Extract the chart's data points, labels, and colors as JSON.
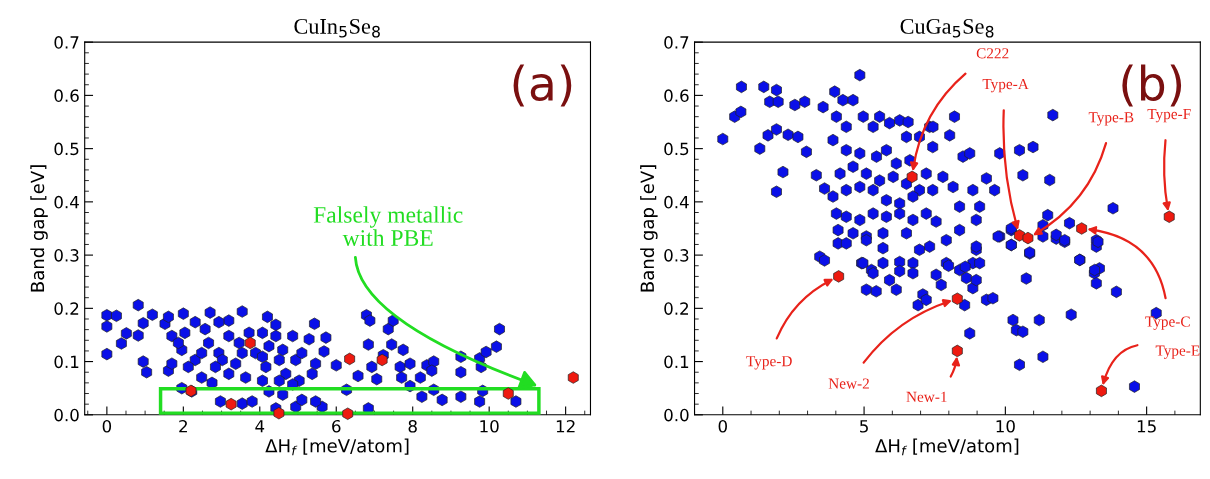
{
  "chart_data": [
    {
      "type": "scatter",
      "title": "CuIn$_{5}$Se$_{8}$",
      "xlabel": "ΔH$_{f}$ [meV/atom]",
      "ylabel": "Band gap [eV]",
      "xlim": [
        -0.58,
        12.65
      ],
      "ylim": [
        0,
        0.7
      ],
      "xticks": [
        0,
        2,
        4,
        6,
        8,
        10,
        12
      ],
      "yticks": [
        {
          "value": 0,
          "label": "0.0"
        },
        0.1,
        0.2,
        0.3,
        0.4,
        0.5,
        0.6,
        0.7
      ],
      "grid": false,
      "annotations": [
        "(a)",
        "Falsely metallic\nwith PBE"
      ],
      "series": [
        {
          "color": "#0a10e8",
          "x": [
            0,
            0.25,
            0,
            0,
            0.38,
            0.51,
            0.82,
            0.82,
            0.95,
            1.19,
            0.95,
            1.04,
            1.52,
            1.61,
            1.61,
            2.0,
            2.7,
            3.19,
            3.54,
            4.2,
            4.42,
            1.7,
            1.96,
            2.31,
            2.66,
            2.93,
            3.19,
            3.37,
            3.72,
            3.89,
            4.16,
            4.24,
            4.6,
            4.86,
            4.94,
            5.03,
            5.29,
            5.46,
            5.73,
            5.68,
            5.43,
            6.0,
            6.57,
            6.27,
            6.79,
            6.88,
            6.84,
            6.93,
            7.06,
            6.84,
            7.36,
            7.49,
            7.45,
            7.23,
            7.75,
            7.67,
            7.93,
            7.71,
            7.93,
            8.2,
            8.37,
            8.55,
            8.5,
            8.55,
            8.24,
            8.77,
            9.26,
            9.26,
            9.26,
            9.75,
            9.79,
            9.92,
            10.19,
            10.27,
            9.83,
            9.75,
            10.7,
            4.42,
            4.94,
            5.63,
            5.46,
            5.1,
            3.54,
            3.8,
            2.97,
            2.22,
            1.96,
            1.7,
            4.24,
            4.6,
            4.07,
            3.63,
            3.19,
            2.75,
            2.48,
            2.13,
            2.57,
            2.93,
            2.31,
            2.04,
            3.02,
            4.07,
            4.51,
            4.68,
            4.86,
            4.51,
            4.42,
            4.07,
            3.46,
            2.48,
            1.87,
            3.54,
            2.84,
            5.1,
            5.37
          ],
          "values": [
            0.187,
            0.186,
            0.166,
            0.114,
            0.134,
            0.153,
            0.206,
            0.149,
            0.172,
            0.188,
            0.1,
            0.08,
            0.171,
            0.184,
            0.083,
            0.19,
            0.192,
            0.177,
            0.194,
            0.184,
            0.169,
            0.148,
            0.122,
            0.103,
            0.135,
            0.116,
            0.148,
            0.096,
            0.154,
            0.116,
            0.09,
            0.129,
            0.122,
            0.148,
            0.103,
            0.064,
            0.142,
            0.096,
            0.145,
            0.119,
            0.171,
            0.093,
            0.073,
            0.047,
            0.187,
            0.177,
            0.132,
            0.09,
            0.067,
            0.012,
            0.161,
            0.177,
            0.132,
            0.112,
            0.122,
            0.09,
            0.096,
            0.07,
            0.054,
            0.07,
            0.093,
            0.1,
            0.083,
            0.047,
            0.034,
            0.028,
            0.109,
            0.08,
            0.034,
            0.106,
            0.09,
            0.118,
            0.128,
            0.161,
            0.045,
            0.025,
            0.025,
            0.012,
            0.015,
            0.015,
            0.025,
            0.028,
            0.021,
            0.025,
            0.025,
            0.044,
            0.05,
            0.096,
            0.044,
            0.038,
            0.064,
            0.07,
            0.077,
            0.06,
            0.07,
            0.09,
            0.161,
            0.174,
            0.174,
            0.154,
            0.103,
            0.109,
            0.103,
            0.077,
            0.057,
            0.064,
            0.148,
            0.154,
            0.135,
            0.116,
            0.135,
            0.116,
            0.09,
            0.116,
            0.077
          ]
        },
        {
          "color": "#ee1a10",
          "x": [
            2.2,
            3.25,
            3.75,
            4.5,
            6.35,
            6.3,
            7.2,
            10.5,
            12.2
          ],
          "values": [
            0.045,
            0.02,
            0.135,
            0.003,
            0.105,
            0.002,
            0.103,
            0.04,
            0.07
          ]
        }
      ]
    },
    {
      "type": "scatter",
      "title": "CuGa$_{5}$Se$_{8}$",
      "xlabel": "ΔH$_{f}$ [meV/atom]",
      "ylabel": "Band gap [eV]",
      "xlim": [
        -1.0,
        16.9
      ],
      "ylim": [
        0,
        0.7
      ],
      "xticks": [
        0,
        5,
        10,
        15
      ],
      "yticks": [
        {
          "value": 0,
          "label": "0.0"
        },
        0.1,
        0.2,
        0.3,
        0.4,
        0.5,
        0.6,
        0.7
      ],
      "grid": false,
      "annotations": [
        "(b)",
        {
          "text": "C222",
          "x": 6.7,
          "y": 0.447
        },
        {
          "text": "Type-A",
          "x": 10.5,
          "y": 0.337
        },
        {
          "text": "Type-B",
          "x": 10.8,
          "y": 0.332
        },
        {
          "text": "Type-C",
          "x": 12.7,
          "y": 0.35
        },
        {
          "text": "Type-D",
          "x": 4.1,
          "y": 0.26
        },
        {
          "text": "Type-E",
          "x": 13.4,
          "y": 0.045
        },
        {
          "text": "Type-F",
          "x": 15.8,
          "y": 0.372
        },
        {
          "text": "New-2",
          "x": 8.3,
          "y": 0.218
        },
        {
          "text": "New-1",
          "x": 8.3,
          "y": 0.12
        }
      ],
      "series": [
        {
          "color": "#0a10e8",
          "x": [
            0,
            0.42,
            0.66,
            0.64,
            1.45,
            1.9,
            1.66,
            1.96,
            1.31,
            1.6,
            1.9,
            2.13,
            1.9,
            2.55,
            2.9,
            2.31,
            2.66,
            2.96,
            3.55,
            3.31,
            3.6,
            3.43,
            3.6,
            3.96,
            4.25,
            4.61,
            4.85,
            4.02,
            4.37,
            3.9,
            4.97,
            5.32,
            5.55,
            5.9,
            6.26,
            6.56,
            7.32,
            6.5,
            6.96,
            7.43,
            4.37,
            4.85,
            5.44,
            5.79,
            6.14,
            6.62,
            7.2,
            7.43,
            6.96,
            6.5,
            6.03,
            5.55,
            5.08,
            4.61,
            4.15,
            3.9,
            4.37,
            4.85,
            5.32,
            5.79,
            6.26,
            6.73,
            7.2,
            7.55,
            6.73,
            6.26,
            5.79,
            5.32,
            4.85,
            4.37,
            4.02,
            4.08,
            4.61,
            5.08,
            5.67,
            6.5,
            6.96,
            7.32,
            5.67,
            5.08,
            4.08,
            4.37,
            4.91,
            5.26,
            6.26,
            6.73,
            5.08,
            5.43,
            6.14,
            7.08,
            4.96,
            5.32,
            5.67,
            5.9,
            6.26,
            6.73,
            6.91,
            7.2,
            7.73,
            7.55,
            7.91,
            8.38,
            8.62,
            8.85,
            8.97,
            8.85,
            9.09,
            8.97,
            8.56,
            8.74,
            9.33,
            9.56,
            9.8,
            10.21,
            10.21,
            10.86,
            10.74,
            10.27,
            10.39,
            10.62,
            11.2,
            10.5,
            11.33,
            12.33,
            12.64,
            11.33,
            11.8,
            12.1,
            13.22,
            13.22,
            13.33,
            13.15,
            13.22,
            13.93,
            15.34,
            14.57,
            11.68,
            10.5,
            10.98,
            9.8,
            9.33,
            9.62,
            10.62,
            11.57,
            13.81,
            11.33,
            11.5,
            12.27,
            9.74,
            10.21,
            10.21,
            10.86,
            11.8,
            12.1,
            13.28,
            12.63,
            13.16,
            8.5,
            8.74,
            8.03,
            8.2,
            7.44,
            8.85,
            9.09,
            8.97,
            8.38,
            8.15,
            7.79,
            8.38,
            7.91,
            8.97,
            8.58,
            7.99
          ],
          "values": [
            0.518,
            0.56,
            0.616,
            0.569,
            0.616,
            0.61,
            0.588,
            0.588,
            0.5,
            0.525,
            0.536,
            0.456,
            0.419,
            0.582,
            0.588,
            0.526,
            0.522,
            0.494,
            0.578,
            0.45,
            0.425,
            0.297,
            0.29,
            0.607,
            0.591,
            0.591,
            0.638,
            0.56,
            0.541,
            0.516,
            0.56,
            0.541,
            0.56,
            0.548,
            0.553,
            0.55,
            0.541,
            0.522,
            0.522,
            0.503,
            0.497,
            0.491,
            0.485,
            0.497,
            0.472,
            0.478,
            0.453,
            0.422,
            0.422,
            0.434,
            0.447,
            0.44,
            0.453,
            0.466,
            0.453,
            0.41,
            0.422,
            0.428,
            0.422,
            0.403,
            0.397,
            0.41,
            0.378,
            0.363,
            0.366,
            0.378,
            0.372,
            0.378,
            0.366,
            0.372,
            0.378,
            0.347,
            0.341,
            0.335,
            0.341,
            0.341,
            0.31,
            0.316,
            0.313,
            0.328,
            0.322,
            0.322,
            0.285,
            0.272,
            0.287,
            0.285,
            0.235,
            0.232,
            0.235,
            0.226,
            0.285,
            0.266,
            0.285,
            0.253,
            0.27,
            0.266,
            0.206,
            0.216,
            0.244,
            0.263,
            0.285,
            0.272,
            0.257,
            0.238,
            0.253,
            0.285,
            0.285,
            0.31,
            0.206,
            0.153,
            0.216,
            0.219,
            0.335,
            0.347,
            0.319,
            0.303,
            0.256,
            0.178,
            0.159,
            0.156,
            0.178,
            0.094,
            0.109,
            0.188,
            0.291,
            0.335,
            0.331,
            0.325,
            0.328,
            0.316,
            0.275,
            0.266,
            0.247,
            0.231,
            0.191,
            0.053,
            0.563,
            0.497,
            0.503,
            0.491,
            0.444,
            0.422,
            0.45,
            0.441,
            0.388,
            0.356,
            0.375,
            0.36,
            0.335,
            0.35,
            0.319,
            0.305,
            0.338,
            0.328,
            0.325,
            0.291,
            0.272,
            0.485,
            0.491,
            0.525,
            0.56,
            0.541,
            0.422,
            0.391,
            0.366,
            0.391,
            0.428,
            0.447,
            0.347,
            0.328,
            0.316,
            0.278,
            0.28
          ]
        },
        {
          "color": "#ee1a10",
          "x": [
            6.7,
            10.5,
            10.8,
            12.7,
            4.1,
            13.4,
            15.8,
            8.3,
            8.3
          ],
          "values": [
            0.447,
            0.337,
            0.332,
            0.35,
            0.26,
            0.045,
            0.372,
            0.218,
            0.12
          ]
        }
      ]
    }
  ]
}
